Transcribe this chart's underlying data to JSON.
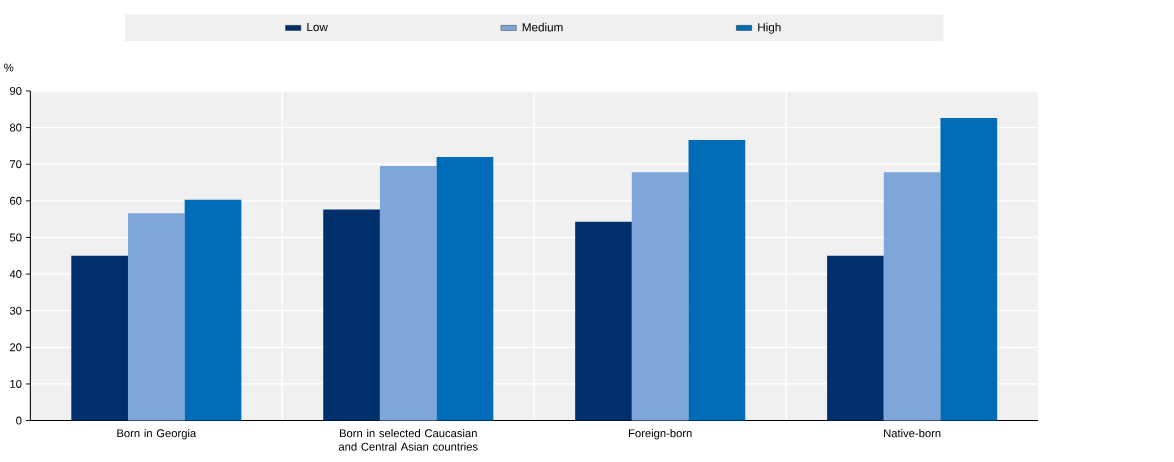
{
  "chart_data": {
    "type": "bar",
    "ylabel": "%",
    "categories": [
      "Born in Georgia",
      "Born in selected Caucasian and Central Asian countries",
      "Foreign-born",
      "Native-born"
    ],
    "series": [
      {
        "name": "Low",
        "color": "#002f6c",
        "values": [
          45.0,
          57.6,
          54.3,
          45.0
        ]
      },
      {
        "name": "Medium",
        "color": "#7fa6d8",
        "values": [
          56.6,
          69.5,
          67.8,
          67.8
        ]
      },
      {
        "name": "High",
        "color": "#006bb6",
        "values": [
          60.3,
          72.0,
          76.6,
          82.6
        ]
      }
    ],
    "ylim": [
      0,
      90
    ],
    "yticks": [
      0,
      10,
      20,
      30,
      40,
      50,
      60,
      70,
      80,
      90
    ],
    "grid": true,
    "legend": "top"
  }
}
